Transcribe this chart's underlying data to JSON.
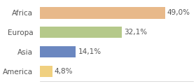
{
  "categories": [
    "Africa",
    "Europa",
    "Asia",
    "America"
  ],
  "values": [
    49.0,
    32.1,
    14.1,
    4.8
  ],
  "labels": [
    "49,0%",
    "32,1%",
    "14,1%",
    "4,8%"
  ],
  "bar_colors": [
    "#e8b98a",
    "#b5c98a",
    "#6b87c0",
    "#f0d080"
  ],
  "background_color": "#ffffff",
  "xlim": [
    0,
    60
  ],
  "label_fontsize": 7.5,
  "category_fontsize": 7.5
}
